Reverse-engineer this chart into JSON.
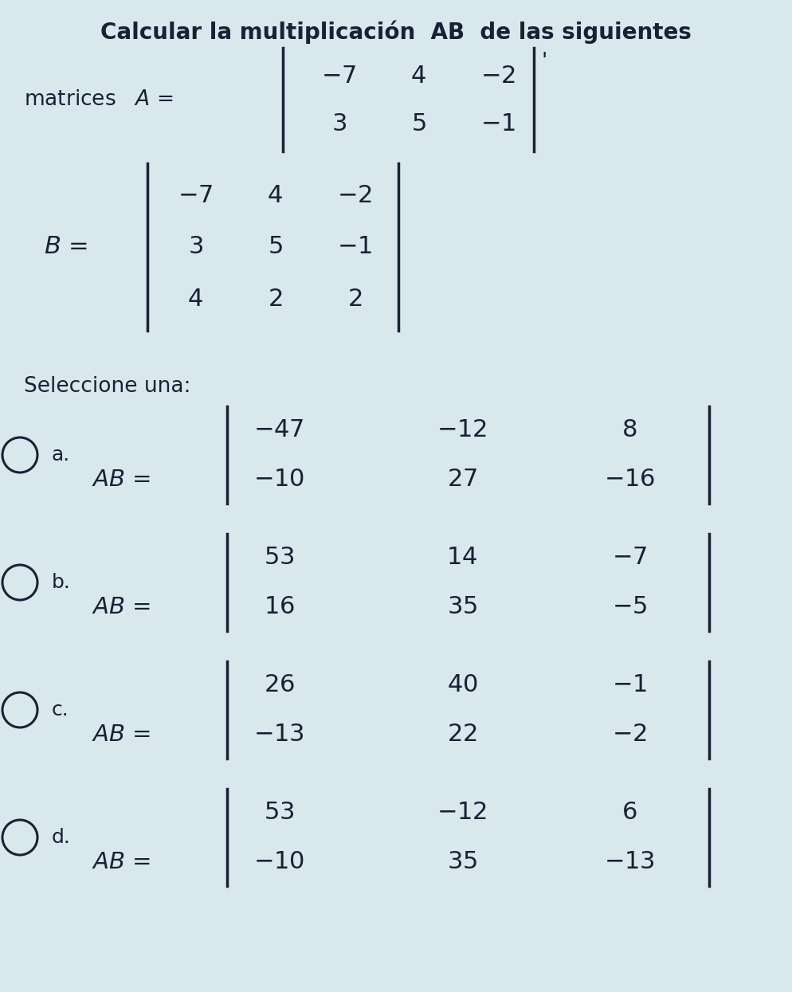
{
  "bg_color": "#d8e8ed",
  "text_color": "#1a2035",
  "title": "Calcular la multiplicación  AB  de las siguientes",
  "matrix_A": [
    [
      -7,
      4,
      -2
    ],
    [
      3,
      5,
      -1
    ]
  ],
  "matrix_B": [
    [
      -7,
      4,
      -2
    ],
    [
      3,
      5,
      -1
    ],
    [
      4,
      2,
      2
    ]
  ],
  "options": [
    {
      "letter": "a.",
      "matrix": [
        [
          -47,
          -12,
          8
        ],
        [
          -10,
          27,
          -16
        ]
      ]
    },
    {
      "letter": "b.",
      "matrix": [
        [
          53,
          14,
          -7
        ],
        [
          16,
          35,
          -5
        ]
      ]
    },
    {
      "letter": "c.",
      "matrix": [
        [
          26,
          40,
          -1
        ],
        [
          -13,
          22,
          -2
        ]
      ]
    },
    {
      "letter": "d.",
      "matrix": [
        [
          53,
          -12,
          6
        ],
        [
          -10,
          35,
          -13
        ]
      ]
    }
  ],
  "fig_w": 9.94,
  "fig_h": 12.45,
  "dpi": 100
}
